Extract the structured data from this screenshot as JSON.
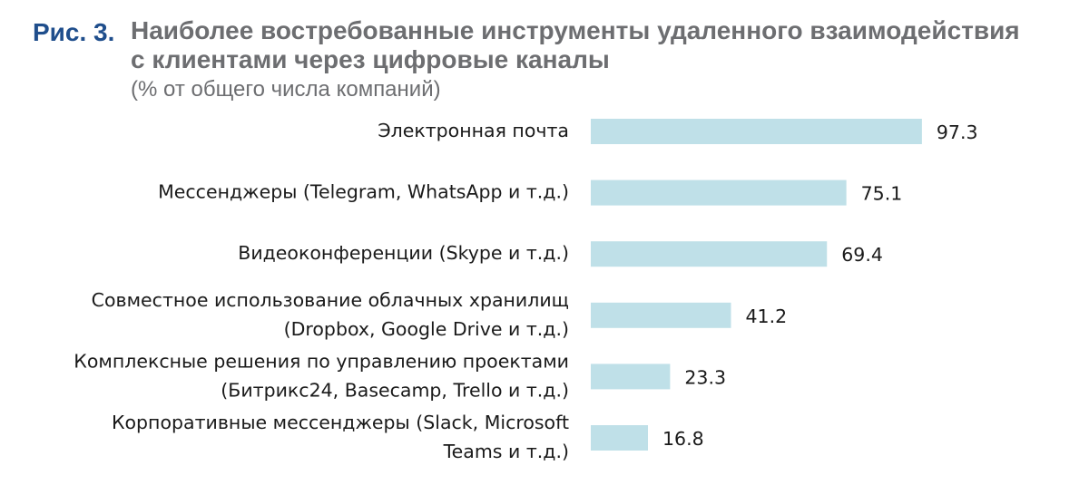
{
  "figure": {
    "label": "Рис. 3.",
    "title_line1": "Наиболее востребованные инструменты удаленного взаимодействия",
    "title_line2": "с клиентами через цифровые каналы",
    "subtitle": "(% от общего числа компаний)"
  },
  "colors": {
    "bar": "#bfe0e8",
    "label_blue": "#1f4e8c",
    "title_gray": "#6d6e71"
  },
  "chart_data": {
    "type": "bar",
    "orientation": "horizontal",
    "title": "Наиболее востребованные инструменты удаленного взаимодействия с клиентами через цифровые каналы",
    "subtitle": "(% от общего числа компаний)",
    "xlabel": "",
    "ylabel": "",
    "xlim": [
      0,
      100
    ],
    "grid": false,
    "categories": [
      [
        "Электронная почта"
      ],
      [
        "Мессенджеры (Telegram, WhatsApp и т.д.)"
      ],
      [
        "Видеоконференции (Skype и т.д.)"
      ],
      [
        "Совместное использование облачных хранилищ",
        "(Dropbox, Google Drive и т.д.)"
      ],
      [
        "Комплексные решения по управлению проектами",
        "(Битрикс24, Basecamp, Trello и т.д.)"
      ],
      [
        "Корпоративные мессенджеры (Slack, Microsoft",
        "Teams и т.д.)"
      ]
    ],
    "values": [
      "97.3",
      "75.1",
      "69.4",
      "41.2",
      "23.3",
      "16.8"
    ]
  }
}
